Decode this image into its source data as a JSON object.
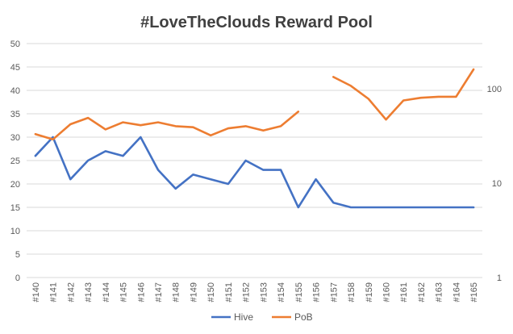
{
  "chart_data": {
    "type": "line",
    "title": "#LoveTheClouds Reward Pool",
    "categories": [
      "#140",
      "#141",
      "#142",
      "#143",
      "#144",
      "#145",
      "#146",
      "#147",
      "#148",
      "#149",
      "#150",
      "#151",
      "#152",
      "#153",
      "#154",
      "#155",
      "#156",
      "#157",
      "#158",
      "#159",
      "#160",
      "#161",
      "#162",
      "#163",
      "#164",
      "#165"
    ],
    "y_left": {
      "min": 0,
      "max": 50,
      "ticks": [
        "0",
        "5",
        "10",
        "15",
        "20",
        "25",
        "30",
        "35",
        "40",
        "45",
        "50"
      ]
    },
    "y_right": {
      "scale": "log",
      "min": 1,
      "max": 300,
      "ticks": [
        "1",
        "10",
        "100"
      ]
    },
    "grid": true,
    "legend_position": "bottom",
    "series": [
      {
        "name": "Hive",
        "axis": "left",
        "color": "#4472c4",
        "values": [
          26,
          30,
          21,
          25,
          27,
          26,
          30,
          23,
          19,
          22,
          21,
          20,
          25,
          23,
          23,
          15,
          21,
          16,
          15,
          15,
          15,
          15,
          15,
          15,
          15,
          15
        ]
      },
      {
        "name": "PoB",
        "axis": "right",
        "color": "#ed7d31",
        "values": [
          33,
          29,
          42,
          49,
          37,
          44,
          41,
          44,
          40,
          39,
          32,
          38,
          40,
          36,
          40,
          57,
          null,
          133,
          107,
          78,
          47,
          75,
          80,
          82,
          82,
          160
        ]
      }
    ]
  }
}
